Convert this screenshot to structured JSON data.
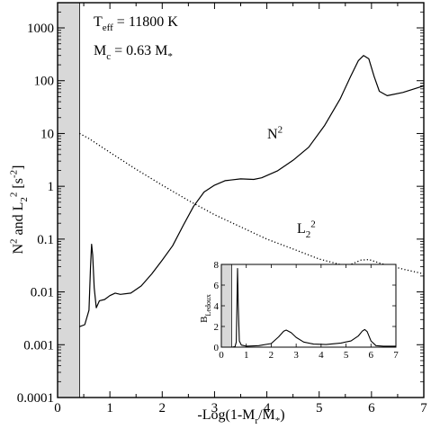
{
  "chart_data": [
    {
      "type": "line",
      "xlabel": "-Log(1-M_r/M_*)",
      "ylabel": "N^2 and L_2^2 [s^-2]",
      "xlim": [
        0,
        7
      ],
      "ylim": [
        0.0001,
        3000
      ],
      "yscale": "log",
      "x_ticks": [
        "0",
        "1",
        "2",
        "3",
        "4",
        "5",
        "6",
        "7"
      ],
      "y_ticks": [
        "0.0001",
        "0.001",
        "0.01",
        "0.1",
        "1",
        "10",
        "100",
        "1000"
      ],
      "y_tick_values": [
        0.0001,
        0.001,
        0.01,
        0.1,
        1,
        10,
        100,
        1000
      ],
      "grid": false,
      "shaded_region_x": [
        0,
        0.42
      ],
      "annotations": [
        "T_eff = 11800 K",
        "M_c = 0.63 M_*"
      ],
      "series": [
        {
          "name": "N^2",
          "style": "solid",
          "points": [
            [
              0.42,
              0.0022
            ],
            [
              0.52,
              0.0024
            ],
            [
              0.6,
              0.0045
            ],
            [
              0.63,
              0.03
            ],
            [
              0.65,
              0.08
            ],
            [
              0.67,
              0.05
            ],
            [
              0.7,
              0.012
            ],
            [
              0.74,
              0.005
            ],
            [
              0.8,
              0.0068
            ],
            [
              0.9,
              0.0072
            ],
            [
              1.0,
              0.0085
            ],
            [
              1.1,
              0.0095
            ],
            [
              1.2,
              0.009
            ],
            [
              1.4,
              0.0095
            ],
            [
              1.6,
              0.013
            ],
            [
              1.8,
              0.022
            ],
            [
              2.0,
              0.04
            ],
            [
              2.2,
              0.075
            ],
            [
              2.4,
              0.18
            ],
            [
              2.6,
              0.42
            ],
            [
              2.8,
              0.78
            ],
            [
              3.0,
              1.05
            ],
            [
              3.2,
              1.28
            ],
            [
              3.5,
              1.38
            ],
            [
              3.75,
              1.35
            ],
            [
              3.9,
              1.45
            ],
            [
              4.2,
              1.95
            ],
            [
              4.5,
              3.1
            ],
            [
              4.8,
              5.5
            ],
            [
              5.1,
              14
            ],
            [
              5.4,
              45
            ],
            [
              5.6,
              120
            ],
            [
              5.75,
              240
            ],
            [
              5.85,
              300
            ],
            [
              5.95,
              260
            ],
            [
              6.05,
              120
            ],
            [
              6.15,
              63
            ],
            [
              6.3,
              52
            ],
            [
              6.6,
              60
            ],
            [
              7.0,
              80
            ]
          ]
        },
        {
          "name": "L_2^2",
          "style": "dotted",
          "points": [
            [
              0.42,
              10
            ],
            [
              0.6,
              8
            ],
            [
              1.0,
              4.4
            ],
            [
              1.5,
              2.1
            ],
            [
              2.0,
              1.05
            ],
            [
              2.5,
              0.54
            ],
            [
              3.0,
              0.29
            ],
            [
              3.5,
              0.17
            ],
            [
              4.0,
              0.1
            ],
            [
              4.5,
              0.065
            ],
            [
              5.0,
              0.042
            ],
            [
              5.4,
              0.033
            ],
            [
              5.6,
              0.033
            ],
            [
              5.8,
              0.04
            ],
            [
              5.95,
              0.041
            ],
            [
              6.2,
              0.034
            ],
            [
              6.6,
              0.027
            ],
            [
              7.0,
              0.022
            ]
          ]
        }
      ],
      "series_labels": [
        "N^2",
        "L_2^2"
      ]
    },
    {
      "type": "line",
      "ylabel": "B_Ledoux",
      "xlim": [
        0,
        7
      ],
      "ylim": [
        0,
        8
      ],
      "x_ticks": [
        "0",
        "1",
        "2",
        "3",
        "4",
        "5",
        "6",
        "7"
      ],
      "y_ticks": [
        "0",
        "2",
        "4",
        "6",
        "8"
      ],
      "y_tick_values": [
        0,
        2,
        4,
        6,
        8
      ],
      "shaded_region_x": [
        0,
        0.42
      ],
      "series": [
        {
          "style": "solid",
          "points": [
            [
              0.42,
              0
            ],
            [
              0.55,
              0.05
            ],
            [
              0.6,
              0.5
            ],
            [
              0.63,
              5
            ],
            [
              0.65,
              7.6
            ],
            [
              0.68,
              4
            ],
            [
              0.72,
              0.6
            ],
            [
              0.8,
              0.2
            ],
            [
              1.0,
              0.1
            ],
            [
              1.5,
              0.15
            ],
            [
              2.0,
              0.35
            ],
            [
              2.3,
              1.0
            ],
            [
              2.5,
              1.55
            ],
            [
              2.6,
              1.65
            ],
            [
              2.8,
              1.4
            ],
            [
              3.0,
              0.95
            ],
            [
              3.3,
              0.5
            ],
            [
              3.7,
              0.3
            ],
            [
              4.2,
              0.25
            ],
            [
              4.8,
              0.4
            ],
            [
              5.2,
              0.6
            ],
            [
              5.5,
              1.1
            ],
            [
              5.65,
              1.55
            ],
            [
              5.75,
              1.7
            ],
            [
              5.85,
              1.5
            ],
            [
              6.0,
              0.6
            ],
            [
              6.2,
              0.15
            ],
            [
              6.5,
              0.1
            ],
            [
              7.0,
              0.1
            ]
          ]
        }
      ]
    }
  ]
}
